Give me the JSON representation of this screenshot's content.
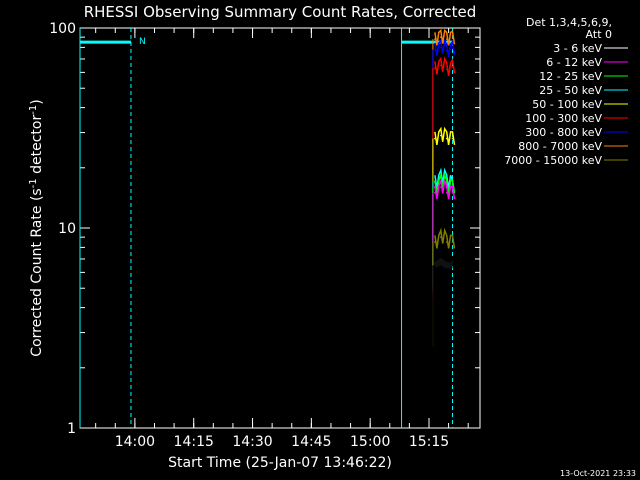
{
  "chart_data": {
    "type": "line",
    "title": "RHESSI Observing Summary Count Rates, Corrected",
    "xlabel": "Start Time (25-Jan-07 13:46:22)",
    "ylabel_main": "Corrected Count Rate (s",
    "ylabel_sup1": "-1",
    "ylabel_mid": " detector",
    "ylabel_sup2": "-1",
    "ylabel_end": ")",
    "yscale": "log",
    "ylim": [
      1,
      100
    ],
    "xlim_minutes": [
      13.7667,
      15.4667
    ],
    "x_ticks": [
      {
        "label": "14:00",
        "value": 14.0
      },
      {
        "label": "14:15",
        "value": 14.25
      },
      {
        "label": "14:30",
        "value": 14.5
      },
      {
        "label": "14:45",
        "value": 14.75
      },
      {
        "label": "15:00",
        "value": 15.0
      },
      {
        "label": "15:15",
        "value": 15.25
      }
    ],
    "y_ticks": [
      {
        "label": "1",
        "value": 1
      },
      {
        "label": "10",
        "value": 10
      },
      {
        "label": "100",
        "value": 100
      }
    ],
    "legend": {
      "header_line1": "Det 1,3,4,5,6,9,",
      "header_line2": "Att 0",
      "placement": "top-right outside",
      "entries": [
        {
          "label": "3 - 6 keV",
          "color": "#000000"
        },
        {
          "label": "6 - 12 keV",
          "color": "#ff00ff"
        },
        {
          "label": "12 - 25 keV",
          "color": "#00ff00"
        },
        {
          "label": "25 - 50 keV",
          "color": "#00ffff"
        },
        {
          "label": "50 - 100 keV",
          "color": "#ffff00"
        },
        {
          "label": "100 - 300 keV",
          "color": "#ff0000"
        },
        {
          "label": "300 - 800 keV",
          "color": "#0000ff"
        },
        {
          "label": "800 - 7000 keV",
          "color": "#ff8000"
        },
        {
          "label": "7000 - 15000 keV",
          "color": "#808000"
        }
      ]
    },
    "flags": [
      {
        "label": "N",
        "color": "#00ffff",
        "start": 13.7667,
        "end": 13.9833,
        "level": 85
      },
      {
        "label": "",
        "color": "#00ffff",
        "start": 15.1333,
        "end": 15.35,
        "level": 85
      }
    ],
    "vlines_solid": [
      13.7667,
      15.1333
    ],
    "vlines_dashed": [
      13.9833,
      15.35
    ],
    "series": [
      {
        "name": "800 - 7000 keV",
        "color": "#ff8000",
        "x": [
          15.275,
          15.3,
          15.325,
          15.35
        ],
        "values": [
          88,
          90,
          88,
          89
        ]
      },
      {
        "name": "300 - 800 keV",
        "color": "#0000ff",
        "x": [
          15.275,
          15.3,
          15.325,
          15.35
        ],
        "values": [
          78,
          80,
          77,
          79
        ]
      },
      {
        "name": "100 - 300 keV",
        "color": "#ff0000",
        "x": [
          15.275,
          15.3,
          15.325,
          15.35
        ],
        "values": [
          63,
          65,
          62,
          64
        ]
      },
      {
        "name": "50 - 100 keV",
        "color": "#ffff00",
        "x": [
          15.275,
          15.3,
          15.325,
          15.35
        ],
        "values": [
          28,
          29,
          28,
          28
        ]
      },
      {
        "name": "25 - 50 keV",
        "color": "#00ffff",
        "x": [
          15.275,
          15.3,
          15.325,
          15.35
        ],
        "values": [
          17,
          18,
          17,
          16
        ]
      },
      {
        "name": "12 - 25 keV",
        "color": "#00ff00",
        "x": [
          15.275,
          15.3,
          15.325,
          15.35
        ],
        "values": [
          16,
          17,
          16,
          16
        ]
      },
      {
        "name": "6 - 12 keV",
        "color": "#ff00ff",
        "x": [
          15.275,
          15.3,
          15.325,
          15.35
        ],
        "values": [
          15,
          16,
          15,
          15
        ]
      },
      {
        "name": "7000 - 15000 keV",
        "color": "#808000",
        "x": [
          15.275,
          15.3,
          15.325,
          15.35
        ],
        "values": [
          8.5,
          9,
          8.5,
          8.5
        ]
      },
      {
        "name": "3 - 6 keV",
        "color": "#000000",
        "x": [
          15.275,
          15.3,
          15.325,
          15.35
        ],
        "values": [
          6.5,
          6.8,
          6.5,
          6.5
        ]
      }
    ]
  },
  "footer": {
    "timestamp": "13-Oct-2021 23:33"
  }
}
